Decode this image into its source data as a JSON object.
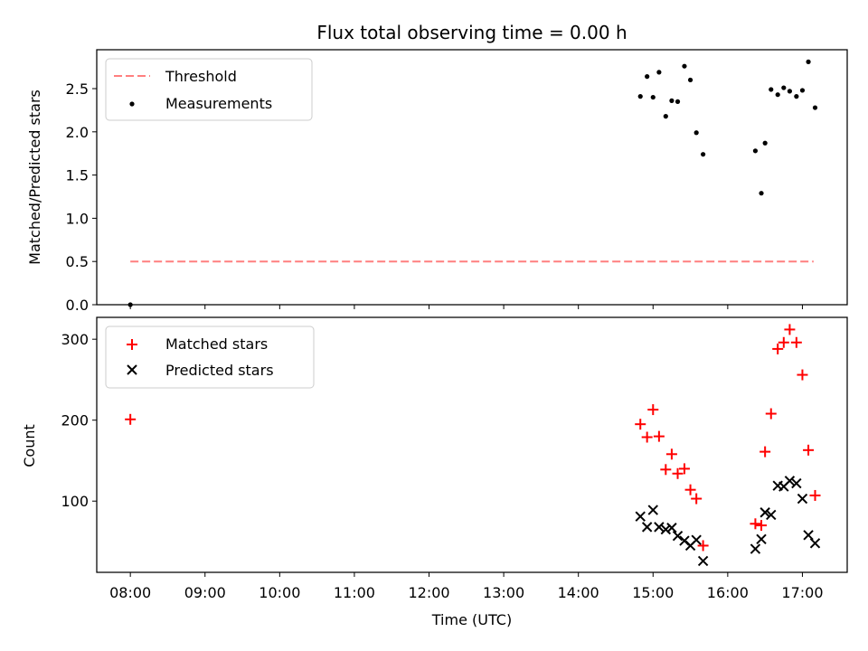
{
  "chart_data": [
    {
      "type": "line",
      "title": "Flux total observing time = 0.00 h",
      "xlabel": "",
      "ylabel": "Matched/Predicted stars",
      "ylim": [
        0,
        2.95
      ],
      "yticks": [
        "0.0",
        "0.5",
        "1.0",
        "1.5",
        "2.0",
        "2.5"
      ],
      "legend_position": "upper-left",
      "series": [
        {
          "name": "Threshold",
          "style": "dashed-line",
          "color": "#ff7f7f",
          "x": [
            8.0,
            17.15
          ],
          "y": [
            0.5,
            0.5
          ]
        },
        {
          "name": "Measurements",
          "style": "scatter-dot",
          "color": "#000000",
          "x": [
            8.0,
            14.83,
            14.92,
            15.0,
            15.08,
            15.17,
            15.25,
            15.33,
            15.42,
            15.5,
            15.58,
            15.67,
            16.37,
            16.45,
            16.5,
            16.58,
            16.67,
            16.75,
            16.83,
            16.92,
            17.0,
            17.08,
            17.17
          ],
          "y": [
            0.0,
            2.41,
            2.64,
            2.4,
            2.69,
            2.18,
            2.36,
            2.35,
            2.76,
            2.6,
            1.99,
            1.74,
            1.78,
            1.29,
            1.87,
            2.49,
            2.43,
            2.51,
            2.47,
            2.41,
            2.48,
            2.81,
            2.28
          ]
        }
      ]
    },
    {
      "type": "scatter",
      "title": "",
      "xlabel": "Time (UTC)",
      "ylabel": "Count",
      "xlim": [
        7.55,
        17.6
      ],
      "ylim": [
        12,
        327
      ],
      "xticks": [
        "08:00",
        "09:00",
        "10:00",
        "11:00",
        "12:00",
        "13:00",
        "14:00",
        "15:00",
        "16:00",
        "17:00"
      ],
      "yticks": [
        "100",
        "200",
        "300"
      ],
      "legend_position": "upper-left",
      "series": [
        {
          "name": "Matched stars",
          "marker": "plus",
          "color": "#ff0000",
          "x": [
            8.0,
            14.83,
            14.92,
            15.0,
            15.08,
            15.17,
            15.25,
            15.33,
            15.42,
            15.5,
            15.58,
            15.67,
            16.37,
            16.45,
            16.5,
            16.58,
            16.67,
            16.75,
            16.83,
            16.92,
            17.0,
            17.08,
            17.17
          ],
          "y": [
            201,
            195,
            179,
            213,
            180,
            139,
            158,
            134,
            140,
            114,
            103,
            45,
            72,
            70,
            161,
            208,
            288,
            296,
            312,
            296,
            256,
            163,
            107
          ]
        },
        {
          "name": "Predicted stars",
          "marker": "x",
          "color": "#000000",
          "x": [
            14.83,
            14.92,
            15.0,
            15.08,
            15.17,
            15.25,
            15.33,
            15.42,
            15.5,
            15.58,
            15.67,
            16.37,
            16.45,
            16.5,
            16.58,
            16.67,
            16.75,
            16.83,
            16.92,
            17.0,
            17.08,
            17.17
          ],
          "y": [
            81,
            68,
            89,
            68,
            65,
            67,
            57,
            51,
            45,
            52,
            26,
            41,
            53,
            86,
            83,
            119,
            118,
            125,
            122,
            103,
            58,
            48
          ]
        }
      ]
    }
  ]
}
